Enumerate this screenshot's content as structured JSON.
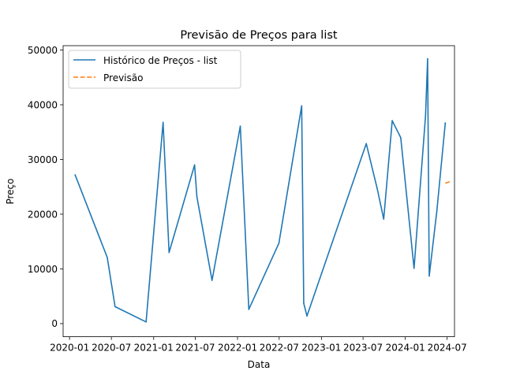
{
  "chart_data": {
    "type": "line",
    "title": "Previsão de Preços para list",
    "xlabel": "Data",
    "ylabel": "Preço",
    "xlim": [
      "2019-12-04",
      "2024-08-02"
    ],
    "ylim": [
      -2400,
      50800
    ],
    "x_ticks": [
      "2020-01",
      "2020-07",
      "2021-01",
      "2021-07",
      "2022-01",
      "2022-07",
      "2023-01",
      "2023-07",
      "2024-01",
      "2024-07"
    ],
    "x_tick_dates": [
      "2020-01-01",
      "2020-07-01",
      "2021-01-01",
      "2021-07-01",
      "2022-01-01",
      "2022-07-01",
      "2023-01-01",
      "2023-07-01",
      "2024-01-01",
      "2024-07-01"
    ],
    "y_ticks": [
      0,
      10000,
      20000,
      30000,
      40000,
      50000
    ],
    "y_tick_labels": [
      "0",
      "10000",
      "20000",
      "30000",
      "40000",
      "50000"
    ],
    "grid": false,
    "legend_position": "top-left",
    "series": [
      {
        "name": "Histórico de Preços - list",
        "color": "#1f77b4",
        "style": "solid",
        "points": [
          {
            "x": "2020-01-25",
            "y": 27200
          },
          {
            "x": "2020-06-13",
            "y": 12100
          },
          {
            "x": "2020-07-17",
            "y": 3100
          },
          {
            "x": "2020-11-29",
            "y": 300
          },
          {
            "x": "2021-02-11",
            "y": 36800
          },
          {
            "x": "2021-03-09",
            "y": 13000
          },
          {
            "x": "2021-06-28",
            "y": 29000
          },
          {
            "x": "2021-07-08",
            "y": 23200
          },
          {
            "x": "2021-09-12",
            "y": 7900
          },
          {
            "x": "2022-01-13",
            "y": 36100
          },
          {
            "x": "2022-02-19",
            "y": 2600
          },
          {
            "x": "2022-06-30",
            "y": 14700
          },
          {
            "x": "2022-10-07",
            "y": 39800
          },
          {
            "x": "2022-10-16",
            "y": 3700
          },
          {
            "x": "2022-10-30",
            "y": 1400
          },
          {
            "x": "2023-07-15",
            "y": 32900
          },
          {
            "x": "2023-08-31",
            "y": 24800
          },
          {
            "x": "2023-09-29",
            "y": 19100
          },
          {
            "x": "2023-11-05",
            "y": 37100
          },
          {
            "x": "2023-12-12",
            "y": 34000
          },
          {
            "x": "2024-02-08",
            "y": 10100
          },
          {
            "x": "2024-03-29",
            "y": 38000
          },
          {
            "x": "2024-04-07",
            "y": 48400
          },
          {
            "x": "2024-04-14",
            "y": 8700
          },
          {
            "x": "2024-05-17",
            "y": 20500
          },
          {
            "x": "2024-06-23",
            "y": 36700
          }
        ]
      },
      {
        "name": "Previsão",
        "color": "#ff7f0e",
        "style": "dashed",
        "points": [
          {
            "x": "2024-06-25",
            "y": 25700
          },
          {
            "x": "2024-07-10",
            "y": 25900
          }
        ]
      }
    ]
  }
}
